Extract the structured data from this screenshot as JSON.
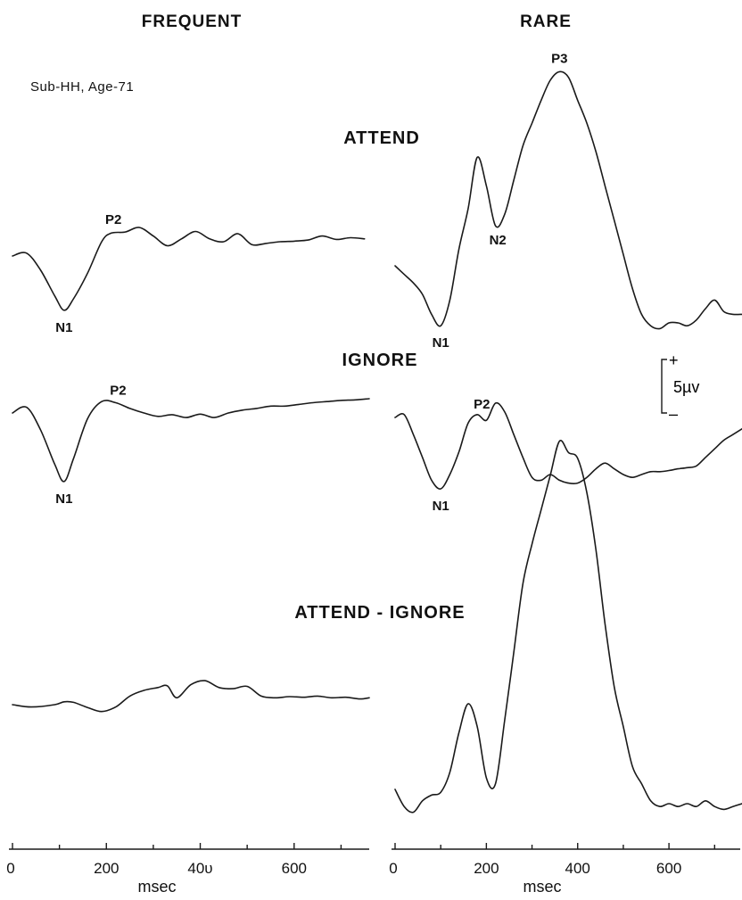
{
  "chart_data": {
    "type": "line",
    "subject": "Sub-HH, Age-71",
    "columns": [
      {
        "key": "frequent",
        "title": "FREQUENT"
      },
      {
        "key": "rare",
        "title": "RARE"
      }
    ],
    "conditions": [
      "ATTEND",
      "IGNORE",
      "ATTEND - IGNORE"
    ],
    "x_axis": {
      "label": "msec",
      "range": [
        0,
        760
      ],
      "ticks": [
        0,
        200,
        400,
        600
      ],
      "tick_labels": [
        "0",
        "200",
        "400",
        "600"
      ],
      "frequent_tick_labels": [
        "0",
        "200",
        "40υ",
        "600"
      ]
    },
    "scale_bar": {
      "value": "5µv",
      "plus": "+",
      "minus": "–"
    },
    "panels": [
      {
        "column": "frequent",
        "condition": "ATTEND",
        "x": [
          0,
          30,
          60,
          90,
          110,
          130,
          160,
          190,
          210,
          240,
          270,
          300,
          330,
          360,
          390,
          420,
          450,
          480,
          510,
          540,
          570,
          600,
          630,
          660,
          690,
          720,
          750
        ],
        "y": [
          0,
          0.5,
          -2.5,
          -7,
          -9.5,
          -7.5,
          -3,
          2.5,
          4,
          4.2,
          5,
          3.5,
          1.8,
          3,
          4.3,
          3,
          2.5,
          3.9,
          2,
          2.2,
          2.5,
          2.6,
          2.8,
          3.5,
          2.9,
          3.2,
          3
        ],
        "peaks": [
          {
            "label": "N1",
            "x": 110
          },
          {
            "label": "P2",
            "x": 215
          }
        ]
      },
      {
        "column": "rare",
        "condition": "ATTEND",
        "x": [
          0,
          20,
          40,
          60,
          80,
          100,
          120,
          140,
          160,
          180,
          200,
          220,
          240,
          260,
          280,
          300,
          320,
          340,
          360,
          380,
          400,
          420,
          440,
          460,
          480,
          500,
          520,
          540,
          560,
          580,
          600,
          620,
          640,
          660,
          680,
          700,
          720,
          740,
          760
        ],
        "y": [
          0,
          -1.5,
          -3,
          -5,
          -8.5,
          -10.5,
          -6,
          3,
          10,
          19,
          14,
          7,
          9,
          15,
          21,
          25,
          29,
          32.5,
          34,
          33,
          29,
          25,
          20,
          14,
          8,
          2,
          -4,
          -8.5,
          -10.5,
          -11,
          -10,
          -10,
          -10.5,
          -9.5,
          -7.5,
          -6,
          -8,
          -8.5,
          -8.5
        ],
        "peaks": [
          {
            "label": "N1",
            "x": 100
          },
          {
            "label": "N2",
            "x": 225
          },
          {
            "label": "P3",
            "x": 360
          }
        ]
      },
      {
        "column": "frequent",
        "condition": "IGNORE",
        "x": [
          0,
          30,
          60,
          90,
          110,
          130,
          160,
          190,
          220,
          250,
          280,
          310,
          340,
          370,
          400,
          430,
          460,
          490,
          520,
          550,
          580,
          610,
          640,
          670,
          700,
          730,
          760
        ],
        "y": [
          0,
          1,
          -3,
          -9,
          -12,
          -8,
          -1,
          2,
          1.8,
          0.8,
          0,
          -0.6,
          -0.3,
          -0.8,
          -0.2,
          -0.8,
          0,
          0.5,
          0.8,
          1.2,
          1.2,
          1.5,
          1.8,
          2,
          2.2,
          2.3,
          2.5
        ],
        "peaks": [
          {
            "label": "N1",
            "x": 110
          },
          {
            "label": "P2",
            "x": 225
          }
        ]
      },
      {
        "column": "rare",
        "condition": "IGNORE",
        "x": [
          0,
          20,
          40,
          60,
          80,
          100,
          120,
          140,
          160,
          180,
          200,
          220,
          240,
          260,
          280,
          300,
          320,
          340,
          360,
          380,
          400,
          420,
          440,
          460,
          480,
          500,
          520,
          540,
          560,
          580,
          600,
          620,
          640,
          660,
          680,
          700,
          720,
          740,
          760
        ],
        "y": [
          0,
          0.5,
          -3,
          -7,
          -11,
          -12.5,
          -10,
          -6,
          -1,
          0.5,
          -0.5,
          2.5,
          1,
          -3,
          -7,
          -10.5,
          -11,
          -10,
          -11,
          -11.5,
          -11.5,
          -10.5,
          -9,
          -8,
          -9,
          -10,
          -10.5,
          -10,
          -9.5,
          -9.5,
          -9.3,
          -9,
          -8.8,
          -8.5,
          -7,
          -5.5,
          -4,
          -3,
          -2
        ],
        "peaks": [
          {
            "label": "N1",
            "x": 100
          },
          {
            "label": "P2",
            "x": 190
          }
        ]
      },
      {
        "column": "frequent",
        "condition": "ATTEND - IGNORE",
        "x": [
          0,
          40,
          90,
          110,
          130,
          160,
          190,
          220,
          250,
          280,
          310,
          330,
          350,
          380,
          410,
          440,
          470,
          500,
          530,
          560,
          590,
          620,
          650,
          680,
          710,
          740,
          760
        ],
        "y": [
          0,
          -0.4,
          0,
          0.5,
          0.4,
          -0.5,
          -1.2,
          -0.4,
          1.5,
          2.5,
          3,
          3.3,
          1.2,
          3.5,
          4.2,
          3,
          2.8,
          3.2,
          1.5,
          1.2,
          1.4,
          1.3,
          1.5,
          1.2,
          1.3,
          1,
          1.2
        ],
        "peaks": []
      },
      {
        "column": "rare",
        "condition": "ATTEND - IGNORE",
        "x": [
          0,
          20,
          40,
          60,
          80,
          100,
          120,
          140,
          160,
          180,
          200,
          220,
          240,
          260,
          280,
          300,
          320,
          340,
          360,
          380,
          400,
          420,
          440,
          460,
          480,
          500,
          520,
          540,
          560,
          580,
          600,
          620,
          640,
          660,
          680,
          700,
          720,
          740,
          760
        ],
        "y": [
          0,
          -3,
          -4,
          -2,
          -1,
          -0.5,
          3,
          10,
          15,
          11,
          2,
          1,
          12,
          24,
          36,
          43,
          49,
          55,
          61,
          59,
          58,
          52,
          42,
          29,
          18,
          11,
          4,
          1,
          -2,
          -3,
          -2.5,
          -3,
          -2.5,
          -3,
          -2,
          -3,
          -3.5,
          -3,
          -2.5
        ],
        "peaks": []
      }
    ]
  }
}
